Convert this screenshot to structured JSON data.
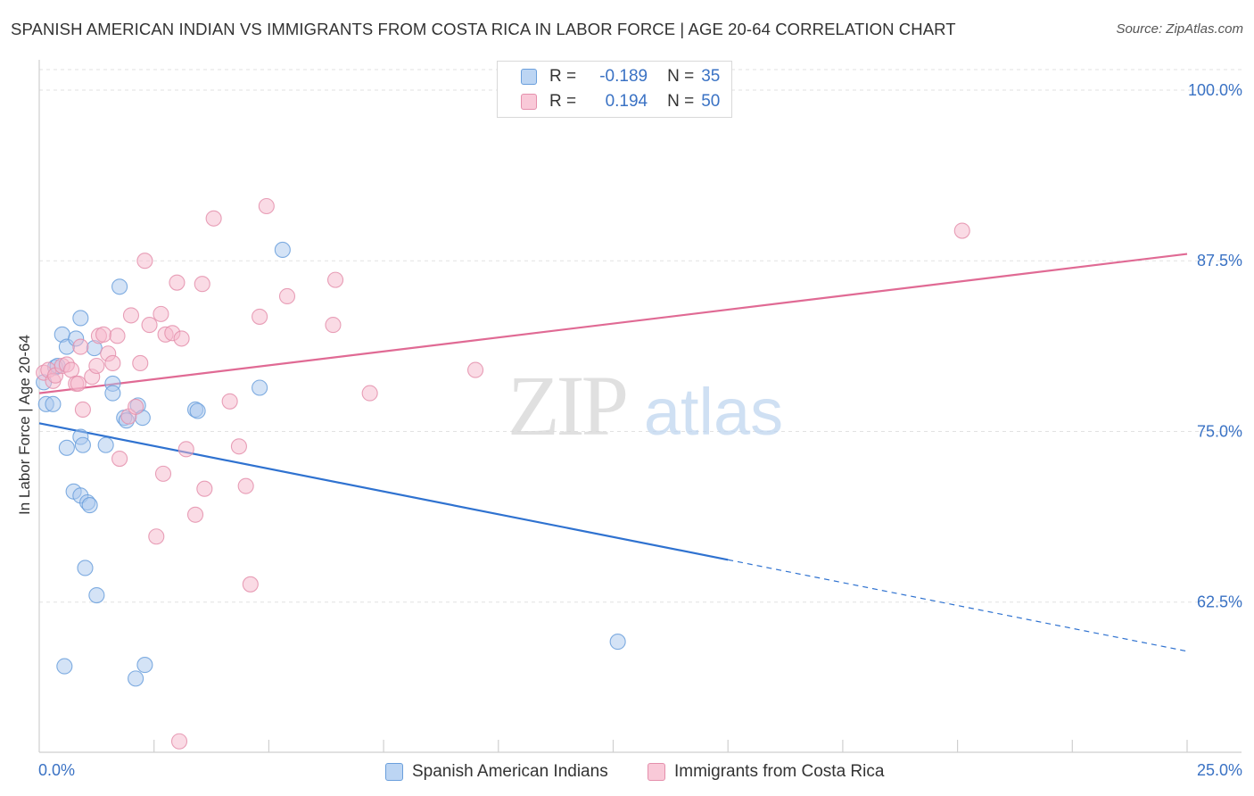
{
  "header": {
    "title": "SPANISH AMERICAN INDIAN VS IMMIGRANTS FROM COSTA RICA IN LABOR FORCE | AGE 20-64 CORRELATION CHART",
    "source": "Source: ZipAtlas.com"
  },
  "watermark": {
    "zip": "ZIP",
    "atlas": "atlas"
  },
  "legend": {
    "rows": [
      {
        "r_label": "R =",
        "r_value": "-0.189",
        "n_label": "N =",
        "n_value": "35",
        "color": "#a9c7ee"
      },
      {
        "r_label": "R =",
        "r_value": "0.194",
        "n_label": "N =",
        "n_value": "50",
        "color": "#f6b8cc"
      }
    ]
  },
  "bottom_legend": [
    {
      "label": "Spanish American Indians",
      "color": "#a9c7ee"
    },
    {
      "label": "Immigrants from Costa Rica",
      "color": "#f6b8cc"
    }
  ],
  "colors": {
    "blue_fill": "#a9c7ee",
    "blue_stroke": "#6a9fdc",
    "blue_line": "#2f72d0",
    "pink_fill": "#f6b8cc",
    "pink_stroke": "#e48fac",
    "pink_line": "#e06a94",
    "tick_text": "#3a72c4",
    "grid": "#e2e2e2"
  },
  "chart_data": {
    "type": "scatter",
    "title": "SPANISH AMERICAN INDIAN VS IMMIGRANTS FROM COSTA RICA IN LABOR FORCE | AGE 20-64 CORRELATION CHART",
    "xlabel": "",
    "ylabel": "In Labor Force | Age 20-64",
    "xlim": [
      0,
      25
    ],
    "ylim": [
      51.5,
      101.5
    ],
    "x_tick_labels": [
      {
        "value": 0,
        "label": "0.0%"
      },
      {
        "value": 25,
        "label": "25.0%"
      }
    ],
    "x_minor_ticks": [
      2.5,
      5,
      7.5,
      10,
      12.5,
      15,
      17.5,
      20,
      22.5,
      25
    ],
    "y_ticks": [
      {
        "value": 100,
        "label": "100.0%"
      },
      {
        "value": 87.5,
        "label": "87.5%"
      },
      {
        "value": 75,
        "label": "75.0%"
      },
      {
        "value": 62.5,
        "label": "62.5%"
      }
    ],
    "grid": true,
    "legend_position": "top-center",
    "series": [
      {
        "name": "Spanish American Indians",
        "r": -0.189,
        "n": 35,
        "points": [
          [
            0.1,
            78.6
          ],
          [
            0.15,
            77.0
          ],
          [
            0.3,
            77.0
          ],
          [
            0.35,
            79.7
          ],
          [
            0.4,
            79.8
          ],
          [
            0.5,
            82.1
          ],
          [
            0.6,
            73.8
          ],
          [
            0.6,
            81.2
          ],
          [
            0.75,
            70.6
          ],
          [
            0.9,
            70.3
          ],
          [
            0.8,
            81.8
          ],
          [
            0.9,
            83.3
          ],
          [
            0.9,
            74.6
          ],
          [
            0.95,
            74.0
          ],
          [
            1.0,
            65.0
          ],
          [
            1.05,
            69.8
          ],
          [
            1.1,
            69.6
          ],
          [
            1.2,
            81.1
          ],
          [
            1.25,
            63.0
          ],
          [
            1.45,
            74.0
          ],
          [
            1.6,
            78.5
          ],
          [
            1.6,
            77.8
          ],
          [
            1.75,
            85.6
          ],
          [
            1.85,
            76.0
          ],
          [
            1.9,
            75.8
          ],
          [
            2.1,
            56.9
          ],
          [
            2.15,
            76.9
          ],
          [
            2.25,
            76.0
          ],
          [
            2.3,
            57.9
          ],
          [
            3.4,
            76.6
          ],
          [
            3.45,
            76.5
          ],
          [
            4.8,
            78.2
          ],
          [
            5.3,
            88.3
          ],
          [
            12.6,
            59.6
          ],
          [
            0.55,
            57.8
          ]
        ],
        "trend": {
          "x": [
            0,
            15
          ],
          "y": [
            75.6,
            65.6
          ]
        },
        "trend_dashed": {
          "x": [
            15,
            25
          ],
          "y": [
            65.6,
            58.9
          ]
        }
      },
      {
        "name": "Immigrants from Costa Rica",
        "r": 0.194,
        "n": 50,
        "points": [
          [
            0.1,
            79.3
          ],
          [
            0.2,
            79.5
          ],
          [
            0.3,
            78.7
          ],
          [
            0.35,
            79.1
          ],
          [
            0.5,
            79.8
          ],
          [
            0.6,
            79.9
          ],
          [
            0.7,
            79.5
          ],
          [
            0.8,
            78.5
          ],
          [
            0.85,
            78.5
          ],
          [
            0.9,
            81.2
          ],
          [
            0.95,
            76.6
          ],
          [
            1.15,
            79.0
          ],
          [
            1.25,
            79.8
          ],
          [
            1.3,
            82.0
          ],
          [
            1.4,
            82.1
          ],
          [
            1.5,
            80.7
          ],
          [
            1.6,
            80.0
          ],
          [
            1.7,
            82.0
          ],
          [
            1.75,
            73.0
          ],
          [
            1.95,
            76.1
          ],
          [
            2.0,
            83.5
          ],
          [
            2.1,
            76.8
          ],
          [
            2.2,
            80.0
          ],
          [
            2.3,
            87.5
          ],
          [
            2.4,
            82.8
          ],
          [
            2.55,
            67.3
          ],
          [
            2.65,
            83.6
          ],
          [
            2.7,
            71.9
          ],
          [
            2.75,
            82.1
          ],
          [
            2.9,
            82.2
          ],
          [
            3.0,
            85.9
          ],
          [
            3.05,
            52.3
          ],
          [
            3.1,
            81.8
          ],
          [
            3.2,
            73.7
          ],
          [
            3.4,
            68.9
          ],
          [
            3.55,
            85.8
          ],
          [
            3.6,
            70.8
          ],
          [
            3.8,
            90.6
          ],
          [
            4.15,
            77.2
          ],
          [
            4.35,
            73.9
          ],
          [
            4.5,
            71.0
          ],
          [
            4.6,
            63.8
          ],
          [
            4.8,
            83.4
          ],
          [
            4.95,
            91.5
          ],
          [
            5.4,
            84.9
          ],
          [
            6.4,
            82.8
          ],
          [
            6.45,
            86.1
          ],
          [
            7.2,
            77.8
          ],
          [
            9.5,
            79.5
          ],
          [
            20.1,
            89.7
          ]
        ],
        "trend": {
          "x": [
            0,
            25
          ],
          "y": [
            77.8,
            88.0
          ]
        }
      }
    ]
  },
  "ylabel_text": "In Labor Force | Age 20-64"
}
